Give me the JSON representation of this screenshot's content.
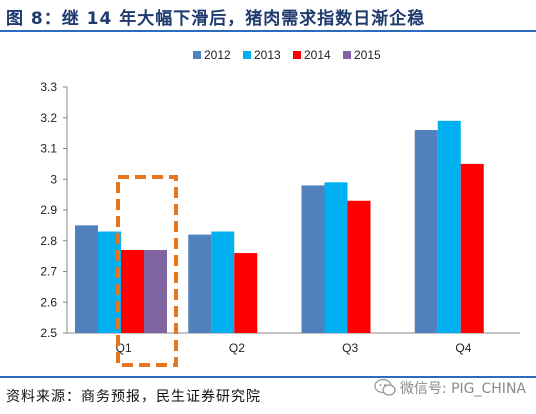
{
  "title": "图 8：继 14 年大幅下滑后，猪肉需求指数日渐企稳",
  "source": "资料来源：商务预报，民生证券研究院",
  "watermark": "微信号: PIG_CHINA",
  "watermark_icon": "wechat-icon",
  "colors": {
    "title": "#1f3b6e",
    "rule": "#2a6cc0",
    "highlight": "#e8741e",
    "series": [
      "#4f81bd",
      "#00b0f0",
      "#ff0000",
      "#8064a2"
    ]
  },
  "chart_data": {
    "type": "bar",
    "categories": [
      "Q1",
      "Q2",
      "Q3",
      "Q4"
    ],
    "series": [
      {
        "name": "2012",
        "values": [
          2.85,
          2.82,
          2.98,
          3.16
        ]
      },
      {
        "name": "2013",
        "values": [
          2.83,
          2.83,
          2.99,
          3.19
        ]
      },
      {
        "name": "2014",
        "values": [
          2.77,
          2.76,
          2.93,
          3.05
        ]
      },
      {
        "name": "2015",
        "values": [
          2.77,
          null,
          null,
          null
        ]
      }
    ],
    "ylim": [
      2.5,
      3.3
    ],
    "yticks": [
      "2.5",
      "2.6",
      "2.7",
      "2.8",
      "2.9",
      "3",
      "3.1",
      "3.2",
      "3.3"
    ],
    "legend_position": "top",
    "grid": false,
    "highlight": "Q1 2014–2015 (dashed box)"
  }
}
